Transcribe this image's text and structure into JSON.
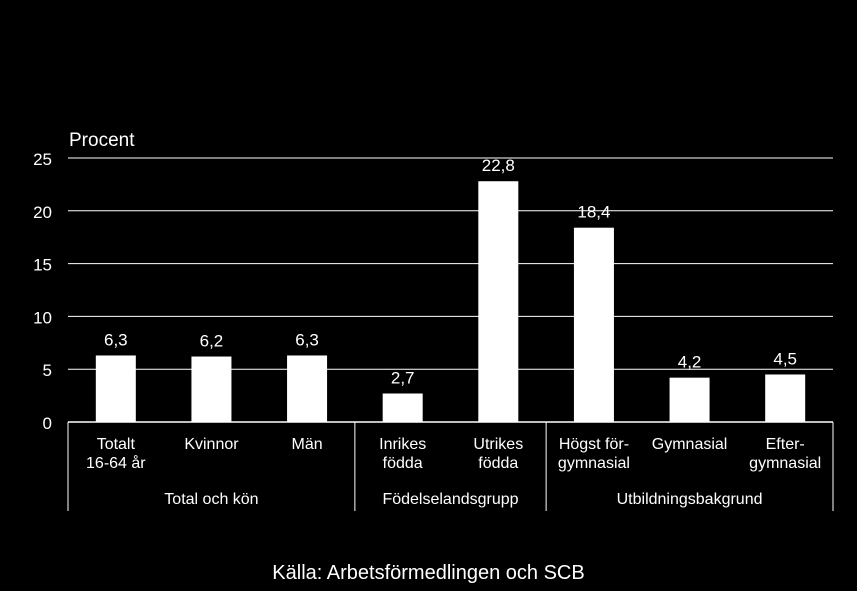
{
  "chart_data": {
    "type": "bar",
    "ylabel": "Procent",
    "ylim": [
      0,
      25
    ],
    "yticks": [
      0,
      5,
      10,
      15,
      20,
      25
    ],
    "grid": true,
    "categories": [
      [
        "Totalt",
        "16-64 år"
      ],
      [
        "Kvinnor"
      ],
      [
        "Män"
      ],
      [
        "Inrikes",
        "födda"
      ],
      [
        "Utrikes",
        "födda"
      ],
      [
        "Högst för-",
        "gymnasial"
      ],
      [
        "Gymnasial"
      ],
      [
        "Efter-",
        "gymnasial"
      ]
    ],
    "values": [
      6.3,
      6.2,
      6.3,
      2.7,
      22.8,
      18.4,
      4.2,
      4.5
    ],
    "data_labels": [
      "6,3",
      "6,2",
      "6,3",
      "2,7",
      "22,8",
      "18,4",
      "4,2",
      "4,5"
    ],
    "groups": [
      {
        "label": "Total och kön",
        "count": 3
      },
      {
        "label": "Födelselandsgrupp",
        "count": 2
      },
      {
        "label": "Utbildningsbakgrund",
        "count": 3
      }
    ],
    "bar_color": "#ffffff",
    "background_color": "#000000"
  },
  "source": "Källa: Arbetsförmedlingen och SCB"
}
